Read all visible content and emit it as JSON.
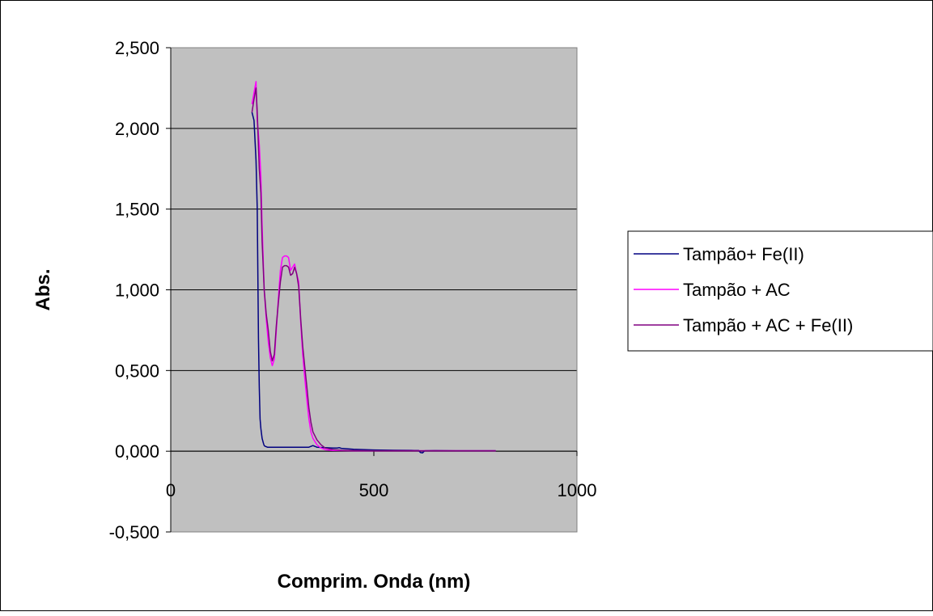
{
  "chart_data": {
    "type": "line",
    "title": "",
    "xlabel": "Comprim. Onda (nm)",
    "ylabel": "Abs.",
    "xlim": [
      0,
      1000
    ],
    "ylim": [
      -0.5,
      2.5
    ],
    "x_ticks": [
      0,
      500,
      1000
    ],
    "x_tick_labels": [
      "0",
      "500",
      "1000"
    ],
    "y_ticks": [
      -0.5,
      0,
      0.5,
      1,
      1.5,
      2,
      2.5
    ],
    "y_tick_labels": [
      "-0,500",
      "0,000",
      "0,500",
      "1,000",
      "1,500",
      "2,000",
      "2,500"
    ],
    "grid": "horizontal",
    "plot_background": "#c0c0c0",
    "legend_position": "right",
    "series": [
      {
        "name": "Tampão+ Fe(II)",
        "color": "#000080",
        "x": [
          200,
          205,
          210,
          213,
          216,
          218,
          220,
          222,
          225,
          228,
          230,
          233,
          235,
          238,
          240,
          245,
          250,
          255,
          300,
          320,
          340,
          345,
          350,
          360,
          380,
          400,
          410,
          415,
          420,
          450,
          500,
          550,
          600,
          610,
          615,
          620,
          625,
          650,
          700,
          750,
          800
        ],
        "y": [
          2.1,
          2.05,
          1.8,
          1.5,
          0.7,
          0.4,
          0.2,
          0.14,
          0.08,
          0.05,
          0.035,
          0.03,
          0.028,
          0.025,
          0.025,
          0.025,
          0.025,
          0.025,
          0.025,
          0.025,
          0.025,
          0.03,
          0.035,
          0.025,
          0.022,
          0.02,
          0.02,
          0.022,
          0.018,
          0.012,
          0.008,
          0.006,
          0.005,
          0.005,
          -0.008,
          -0.01,
          0.003,
          0.004,
          0.003,
          0.003,
          0.003
        ]
      },
      {
        "name": "Tampão + AC",
        "color": "#ff00ff",
        "x": [
          200,
          205,
          210,
          213,
          218,
          222,
          225,
          230,
          235,
          240,
          245,
          250,
          255,
          260,
          265,
          270,
          275,
          280,
          285,
          290,
          295,
          300,
          305,
          310,
          315,
          320,
          325,
          330,
          335,
          340,
          345,
          350,
          360,
          370,
          380,
          400,
          450,
          500,
          600,
          700,
          800
        ],
        "y": [
          2.15,
          2.22,
          2.29,
          2.05,
          1.9,
          1.7,
          1.4,
          1.0,
          0.82,
          0.68,
          0.58,
          0.53,
          0.57,
          0.75,
          0.95,
          1.12,
          1.2,
          1.21,
          1.21,
          1.2,
          1.12,
          1.14,
          1.16,
          1.1,
          1.05,
          0.8,
          0.6,
          0.45,
          0.32,
          0.2,
          0.12,
          0.08,
          0.04,
          0.02,
          0.01,
          0.005,
          0.003,
          0.002,
          0.003,
          0.003,
          0.003
        ]
      },
      {
        "name": "Tampão + AC + Fe(II)",
        "color": "#800080",
        "x": [
          200,
          205,
          210,
          213,
          218,
          222,
          225,
          230,
          235,
          240,
          245,
          250,
          255,
          260,
          265,
          270,
          275,
          280,
          285,
          290,
          295,
          300,
          305,
          310,
          315,
          320,
          325,
          330,
          335,
          340,
          345,
          350,
          360,
          370,
          380,
          400,
          420,
          450,
          500,
          600,
          700,
          800
        ],
        "y": [
          2.1,
          2.18,
          2.25,
          2.1,
          1.75,
          1.6,
          1.3,
          1.0,
          0.85,
          0.75,
          0.62,
          0.56,
          0.6,
          0.78,
          0.92,
          1.05,
          1.14,
          1.15,
          1.15,
          1.14,
          1.09,
          1.1,
          1.14,
          1.1,
          1.02,
          0.82,
          0.65,
          0.52,
          0.4,
          0.27,
          0.18,
          0.12,
          0.07,
          0.04,
          0.02,
          0.01,
          0.006,
          0.004,
          0.003,
          0.003,
          0.003,
          0.003
        ]
      }
    ]
  }
}
